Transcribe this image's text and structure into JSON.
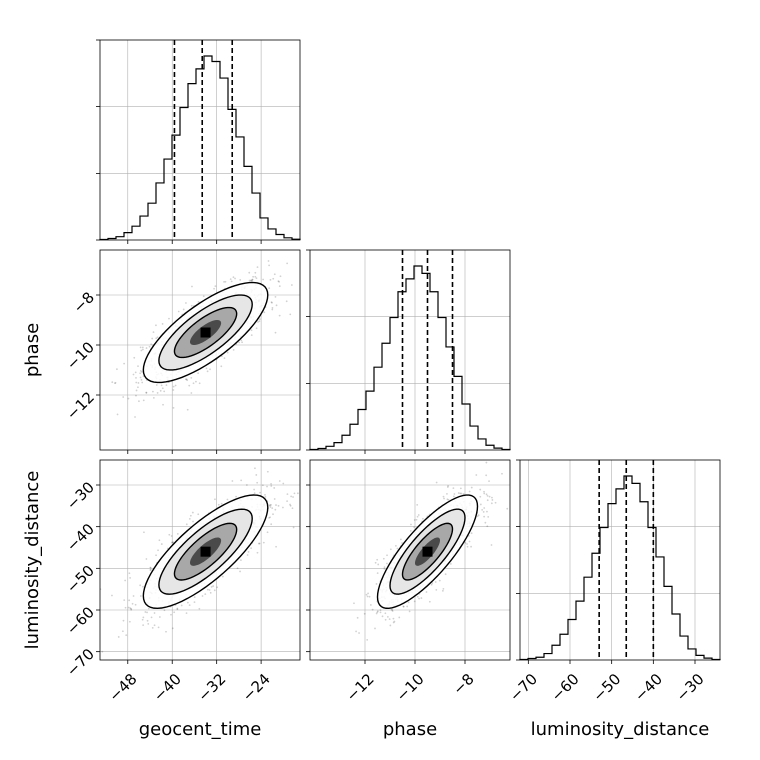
{
  "chart_data": {
    "type": "corner",
    "parameters": [
      {
        "name": "geocent_time",
        "label": "geocent_time",
        "range": [
          -53,
          -17
        ],
        "ticks": [
          -48,
          -40,
          -32,
          -24
        ],
        "quantiles": [
          -39.6,
          -34.6,
          -29.2
        ],
        "hist_density": [
          0.003,
          0.008,
          0.018,
          0.04,
          0.075,
          0.13,
          0.2,
          0.31,
          0.44,
          0.57,
          0.72,
          0.85,
          0.93,
          1.0,
          0.97,
          0.88,
          0.71,
          0.56,
          0.4,
          0.255,
          0.12,
          0.06,
          0.03,
          0.012,
          0.004
        ]
      },
      {
        "name": "phase",
        "label": "phase",
        "range": [
          -14.2,
          -6.2
        ],
        "ticks": [
          -12,
          -10,
          -8
        ],
        "quantiles": [
          -10.5,
          -9.5,
          -8.5
        ],
        "hist_density": [
          0.003,
          0.008,
          0.02,
          0.04,
          0.08,
          0.14,
          0.22,
          0.32,
          0.45,
          0.58,
          0.72,
          0.86,
          0.93,
          1.0,
          0.96,
          0.86,
          0.72,
          0.56,
          0.4,
          0.25,
          0.13,
          0.06,
          0.026,
          0.01,
          0.003
        ]
      },
      {
        "name": "luminosity_distance",
        "label": "luminosity_distance",
        "range": [
          -72,
          -24
        ],
        "ticks": [
          -70,
          -60,
          -50,
          -40,
          -30
        ],
        "quantiles": [
          -53,
          -46.5,
          -40
        ],
        "hist_density": [
          0.003,
          0.008,
          0.015,
          0.035,
          0.08,
          0.14,
          0.22,
          0.32,
          0.45,
          0.58,
          0.72,
          0.85,
          0.93,
          1.0,
          0.96,
          0.86,
          0.72,
          0.56,
          0.4,
          0.25,
          0.13,
          0.06,
          0.025,
          0.01,
          0.003
        ]
      }
    ],
    "joint": [
      {
        "x": "geocent_time",
        "y": "phase",
        "mean": [
          -34,
          -9.5
        ],
        "sd": [
          5.6,
          1.0
        ],
        "correlation": 0.75
      },
      {
        "x": "geocent_time",
        "y": "luminosity_distance",
        "mean": [
          -34,
          -46
        ],
        "sd": [
          5.6,
          6.8
        ],
        "correlation": 0.78
      },
      {
        "x": "phase",
        "y": "luminosity_distance",
        "mean": [
          -9.5,
          -46
        ],
        "sd": [
          1.0,
          6.8
        ],
        "correlation": 0.8
      }
    ],
    "contour_levels_sigma": [
      0.5,
      1.0,
      1.5,
      2.0
    ],
    "grid": true,
    "legend": "none"
  }
}
